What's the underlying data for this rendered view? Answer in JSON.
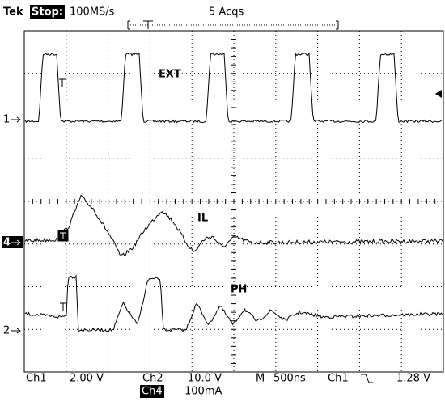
{
  "header": {
    "brand": "Tek",
    "state": "Stop:",
    "sample_rate": "100MS/s",
    "acquisitions": "5 Acqs"
  },
  "traces": {
    "ext": "EXT",
    "il": "IL",
    "ph": "PH"
  },
  "markers": {
    "ch1": "1",
    "ch4": "4",
    "ch2": "2"
  },
  "readout": {
    "ch1_label": "Ch1",
    "ch1_scale": "2.00 V",
    "ch2_label": "Ch2",
    "ch2_scale": "10.0 V",
    "timebase_label": "M",
    "timebase": "500ns",
    "trigger_source": "Ch1",
    "trigger_level": "1.28 V",
    "ch4_label": "Ch4",
    "ch4_scale": "100mA"
  }
}
